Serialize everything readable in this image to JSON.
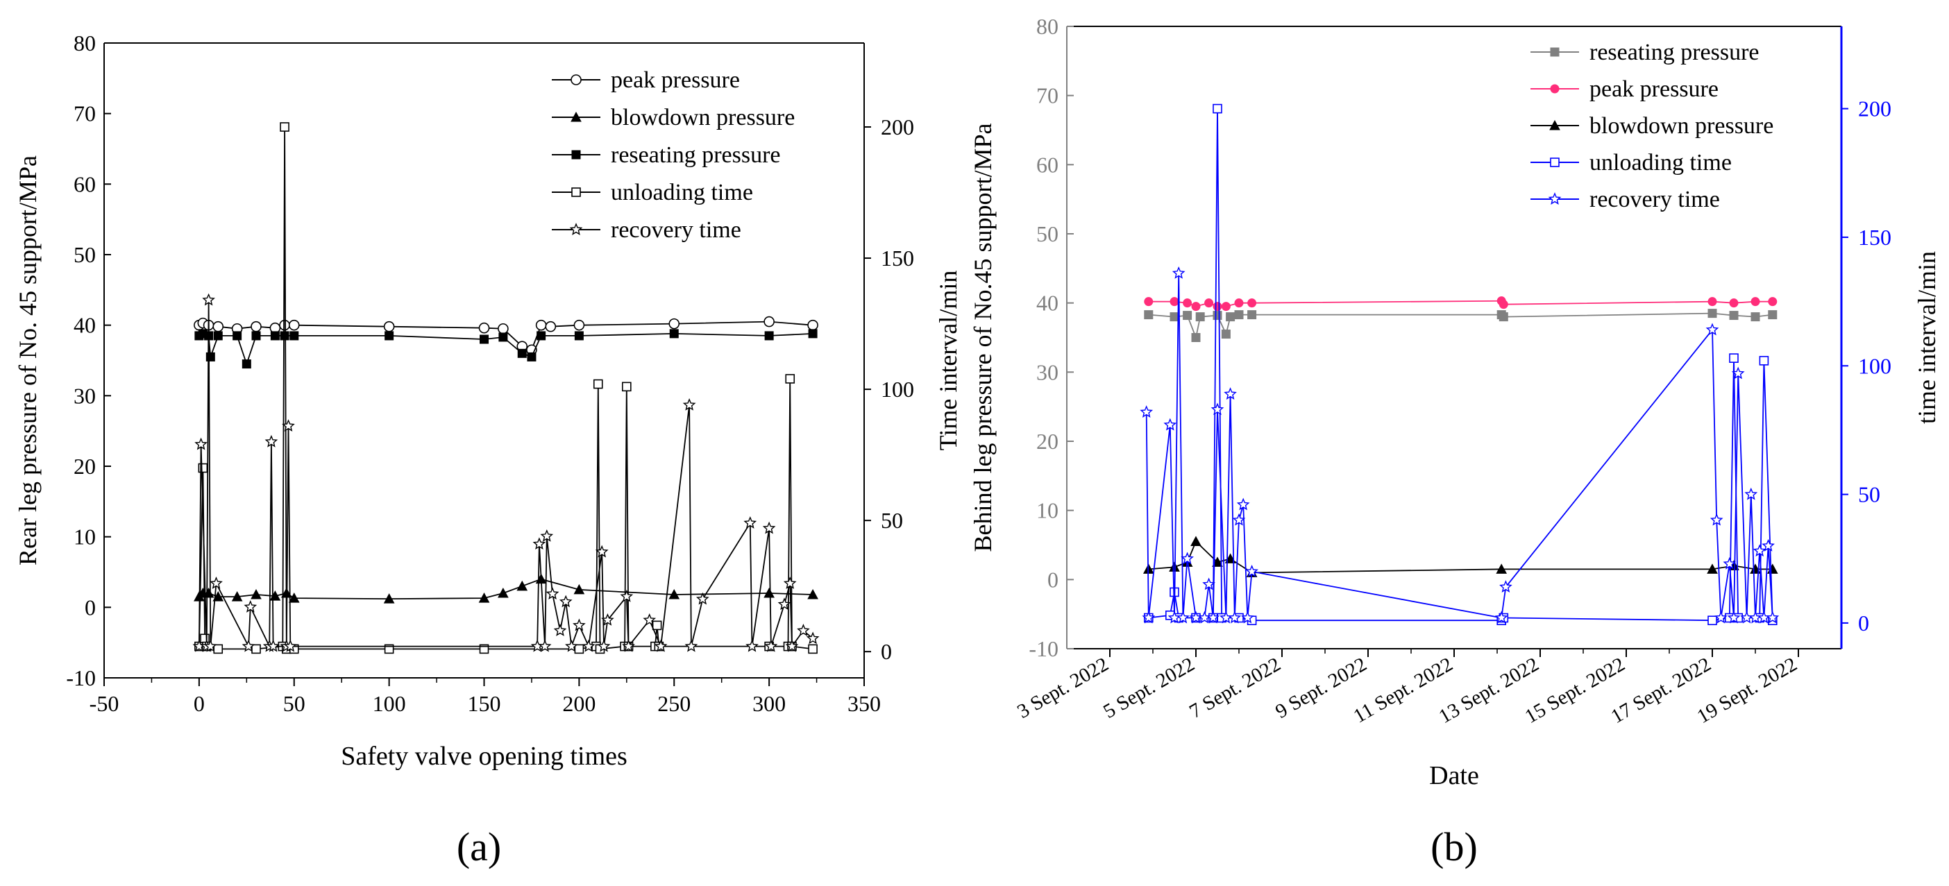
{
  "figure": {
    "panel_a_label": "(a)",
    "panel_b_label": "(b)",
    "colors": {
      "axis": "#000000",
      "panel_b_left_axis": "#808080",
      "panel_b_right_axis": "#0000ff",
      "peak_b": "#ff2d7a",
      "reseat_b": "#808080",
      "blowdown_b": "#000000",
      "time_b": "#0000ff"
    }
  },
  "chart_data": [
    {
      "type": "line",
      "xlabel": "Safety valve opening times",
      "ylabel": "Rear leg pressure of No. 45 support/MPa",
      "y2label": "Time interval/min",
      "xlim": [
        -50,
        350
      ],
      "ylim": [
        -10,
        80
      ],
      "y2lim": [
        -10,
        232
      ],
      "x_ticks": [
        "-50",
        "0",
        "50",
        "100",
        "150",
        "200",
        "250",
        "300",
        "350"
      ],
      "y_ticks": [
        "-10",
        "0",
        "10",
        "20",
        "30",
        "40",
        "50",
        "60",
        "70",
        "80"
      ],
      "y2_ticks": [
        "0",
        "50",
        "100",
        "150",
        "200"
      ],
      "legend_position": "top-right",
      "series": [
        {
          "name": "peak pressure",
          "axis": "left",
          "marker": "circle-open",
          "x": [
            0,
            2,
            5,
            10,
            20,
            30,
            40,
            45,
            50,
            100,
            150,
            160,
            170,
            175,
            180,
            185,
            200,
            250,
            300,
            323
          ],
          "y": [
            40,
            40.3,
            40,
            39.8,
            39.5,
            39.8,
            39.6,
            40,
            40,
            39.8,
            39.6,
            39.5,
            37,
            36.5,
            40,
            39.8,
            40,
            40.2,
            40.5,
            40
          ]
        },
        {
          "name": "blowdown pressure",
          "axis": "left",
          "marker": "triangle-filled",
          "x": [
            0,
            2,
            5,
            10,
            20,
            30,
            40,
            46,
            50,
            100,
            150,
            160,
            170,
            180,
            200,
            250,
            300,
            323
          ],
          "y": [
            1.5,
            2,
            2,
            1.5,
            1.5,
            1.8,
            1.6,
            2,
            1.3,
            1.2,
            1.3,
            2,
            3,
            4,
            2.5,
            1.8,
            2,
            1.8
          ]
        },
        {
          "name": "reseating pressure",
          "axis": "left",
          "marker": "square-filled",
          "x": [
            0,
            2,
            5,
            6,
            10,
            20,
            25,
            30,
            40,
            45,
            50,
            100,
            150,
            160,
            170,
            175,
            180,
            200,
            250,
            300,
            323
          ],
          "y": [
            38.5,
            38.8,
            38.5,
            35.5,
            38.5,
            38.5,
            34.5,
            38.5,
            38.5,
            38.5,
            38.5,
            38.5,
            38,
            38.3,
            36,
            35.5,
            38.5,
            38.5,
            38.8,
            38.5,
            38.8
          ]
        },
        {
          "name": "unloading time",
          "axis": "right",
          "marker": "square-open",
          "x": [
            0,
            2,
            3,
            4,
            10,
            30,
            44,
            45,
            46,
            50,
            100,
            150,
            200,
            209,
            210,
            211,
            224,
            225,
            226,
            240,
            241,
            242,
            300,
            310,
            311,
            312,
            323
          ],
          "y": [
            2,
            70,
            5,
            2,
            1,
            1,
            2,
            200,
            1,
            1,
            1,
            1,
            1,
            2,
            102,
            1,
            2,
            101,
            2,
            2,
            10,
            2,
            2,
            2,
            104,
            2,
            1
          ]
        },
        {
          "name": "recovery time",
          "axis": "right",
          "marker": "star-open",
          "x": [
            0,
            1,
            4,
            5,
            6,
            9,
            26,
            27,
            37,
            38,
            39,
            46,
            47,
            48,
            178,
            179,
            182,
            183,
            186,
            190,
            193,
            196,
            200,
            205,
            212,
            213,
            215,
            225,
            226,
            237,
            243,
            258,
            259,
            265,
            290,
            291,
            300,
            301,
            308,
            311,
            312,
            318,
            323
          ],
          "y": [
            2,
            79,
            2,
            134,
            2,
            26,
            2,
            17,
            2,
            80,
            2,
            2,
            86,
            2,
            2,
            41,
            2,
            44,
            22,
            8,
            19,
            2,
            10,
            2,
            38,
            2,
            12,
            21,
            2,
            12,
            2,
            94,
            2,
            20,
            49,
            2,
            47,
            2,
            18,
            26,
            2,
            8,
            5
          ]
        }
      ]
    },
    {
      "type": "line",
      "xlabel": "Date",
      "ylabel": "Behind leg pressure of No.45 support/MPa",
      "y2label": "time interval/min",
      "xlim": [
        "2022-09-02",
        "2022-09-20"
      ],
      "ylim": [
        -10,
        80
      ],
      "y2lim": [
        -10,
        232
      ],
      "x_ticks": [
        "3 Sept. 2022",
        "5 Sept. 2022",
        "7 Sept. 2022",
        "9 Sept. 2022",
        "11 Sept. 2022",
        "13 Sept. 2022",
        "15 Sept. 2022",
        "17 Sept. 2022",
        "19 Sept. 2022"
      ],
      "y_ticks": [
        "-10",
        "0",
        "10",
        "20",
        "30",
        "40",
        "50",
        "60",
        "70",
        "80"
      ],
      "y2_ticks": [
        "0",
        "50",
        "100",
        "150",
        "200"
      ],
      "legend_position": "top-right",
      "series": [
        {
          "name": "reseating pressure",
          "axis": "left",
          "marker": "square-filled",
          "color": "#808080",
          "x": [
            "2022-09-03.9",
            "2022-09-04.5",
            "2022-09-04.8",
            "2022-09-05.0",
            "2022-09-05.1",
            "2022-09-05.5",
            "2022-09-05.7",
            "2022-09-05.8",
            "2022-09-06.0",
            "2022-09-06.3",
            "2022-09-12.1",
            "2022-09-12.15",
            "2022-09-17.0",
            "2022-09-17.5",
            "2022-09-18.0",
            "2022-09-18.4"
          ],
          "y": [
            38.3,
            38,
            38.2,
            35,
            38,
            38.2,
            35.5,
            38,
            38.3,
            38.3,
            38.3,
            38,
            38.5,
            38.2,
            38,
            38.3
          ]
        },
        {
          "name": "peak pressure",
          "axis": "left",
          "marker": "circle-filled",
          "color": "#ff2d7a",
          "x": [
            "2022-09-03.9",
            "2022-09-04.5",
            "2022-09-04.8",
            "2022-09-05.0",
            "2022-09-05.3",
            "2022-09-05.5",
            "2022-09-05.7",
            "2022-09-06.0",
            "2022-09-06.3",
            "2022-09-12.1",
            "2022-09-12.15",
            "2022-09-17.0",
            "2022-09-17.5",
            "2022-09-18.0",
            "2022-09-18.4"
          ],
          "y": [
            40.2,
            40.2,
            40,
            39.5,
            40,
            39.5,
            39.5,
            40,
            40,
            40.3,
            39.8,
            40.2,
            40,
            40.2,
            40.2
          ]
        },
        {
          "name": "blowdown pressure",
          "axis": "left",
          "marker": "triangle-filled",
          "color": "#000000",
          "x": [
            "2022-09-03.9",
            "2022-09-04.5",
            "2022-09-04.8",
            "2022-09-05.0",
            "2022-09-05.5",
            "2022-09-05.8",
            "2022-09-06.3",
            "2022-09-12.1",
            "2022-09-17.0",
            "2022-09-17.5",
            "2022-09-18.0",
            "2022-09-18.4"
          ],
          "y": [
            1.5,
            1.8,
            2.5,
            5.5,
            2.5,
            3,
            1,
            1.5,
            1.5,
            2,
            1.5,
            1.5
          ]
        },
        {
          "name": "unloading time",
          "axis": "right",
          "marker": "square-open",
          "color": "#0000ff",
          "x": [
            "2022-09-03.9",
            "2022-09-04.4",
            "2022-09-04.5",
            "2022-09-04.6",
            "2022-09-05.0",
            "2022-09-05.4",
            "2022-09-05.5",
            "2022-09-05.6",
            "2022-09-06.0",
            "2022-09-06.3",
            "2022-09-12.1",
            "2022-09-12.15",
            "2022-09-17.0",
            "2022-09-17.4",
            "2022-09-17.5",
            "2022-09-17.6",
            "2022-09-18.1",
            "2022-09-18.2",
            "2022-09-18.4"
          ],
          "y": [
            2,
            3,
            12,
            2,
            2,
            2,
            200,
            2,
            2,
            1,
            1,
            2,
            1,
            2,
            103,
            2,
            2,
            102,
            1
          ]
        },
        {
          "name": "recovery time",
          "axis": "right",
          "marker": "star-open",
          "color": "#0000ff",
          "x": [
            "2022-09-03.85",
            "2022-09-03.9",
            "2022-09-04.4",
            "2022-09-04.5",
            "2022-09-04.6",
            "2022-09-04.7",
            "2022-09-04.8",
            "2022-09-05.0",
            "2022-09-05.2",
            "2022-09-05.3",
            "2022-09-05.4",
            "2022-09-05.5",
            "2022-09-05.7",
            "2022-09-05.8",
            "2022-09-05.9",
            "2022-09-06.0",
            "2022-09-06.1",
            "2022-09-06.2",
            "2022-09-06.3",
            "2022-09-12.1",
            "2022-09-12.2",
            "2022-09-17.0",
            "2022-09-17.1",
            "2022-09-17.2",
            "2022-09-17.4",
            "2022-09-17.5",
            "2022-09-17.6",
            "2022-09-17.8",
            "2022-09-17.9",
            "2022-09-18.0",
            "2022-09-18.1",
            "2022-09-18.2",
            "2022-09-18.3",
            "2022-09-18.4"
          ],
          "y": [
            82,
            2,
            77,
            2,
            136,
            2,
            25,
            2,
            2,
            15,
            2,
            83,
            2,
            89,
            2,
            40,
            46,
            2,
            20,
            2,
            14,
            114,
            40,
            2,
            23,
            2,
            97,
            2,
            50,
            2,
            28,
            2,
            30,
            2
          ]
        }
      ]
    }
  ]
}
